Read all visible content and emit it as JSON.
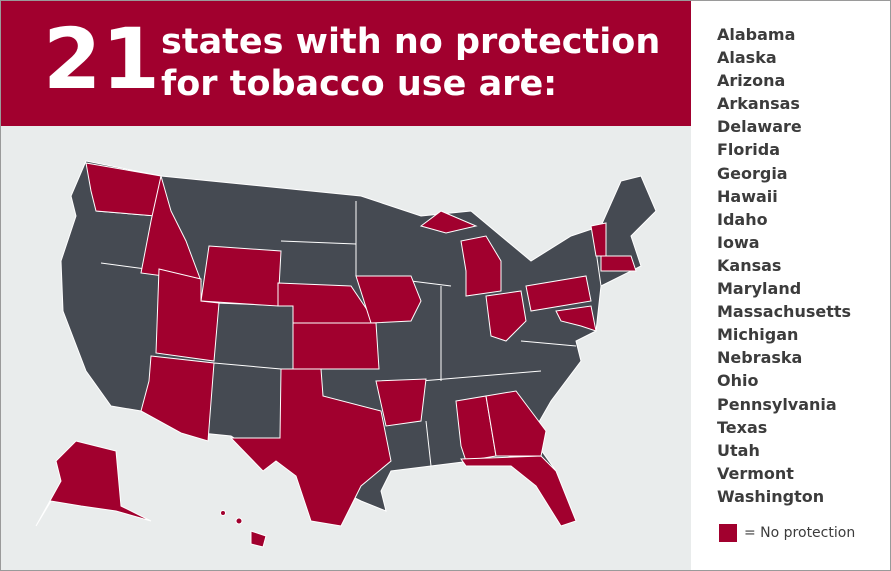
{
  "header": {
    "count": "21",
    "title_lines": [
      "states with no protection",
      "for tobacco use are:"
    ]
  },
  "states": [
    "Alabama",
    "Alaska",
    "Arizona",
    "Arkansas",
    "Delaware",
    "Florida",
    "Georgia",
    "Hawaii",
    "Idaho",
    "Iowa",
    "Kansas",
    "Maryland",
    "Massachusetts",
    "Michigan",
    "Nebraska",
    "Ohio",
    "Pennsylvania",
    "Texas",
    "Utah",
    "Vermont",
    "Washington"
  ],
  "legend": {
    "label": "= No protection"
  }
}
